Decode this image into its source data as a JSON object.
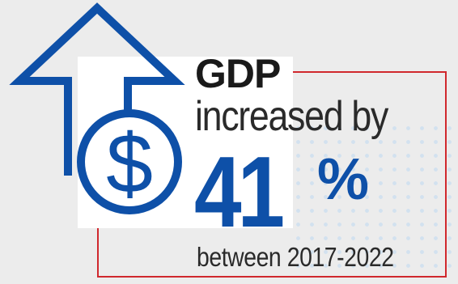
{
  "headline": "GDP",
  "subline": "increased by",
  "percent_value": "41",
  "percent_sign": "%",
  "period": "between 2017-2022",
  "icon": "dollar-up-arrow-icon",
  "colors": {
    "accent_blue": "#0e50a8",
    "frame_red": "#d0282d",
    "text_dark": "#1a1a1a",
    "background": "#ececec"
  }
}
